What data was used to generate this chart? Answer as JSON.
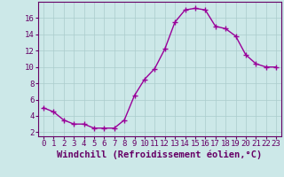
{
  "x": [
    0,
    1,
    2,
    3,
    4,
    5,
    6,
    7,
    8,
    9,
    10,
    11,
    12,
    13,
    14,
    15,
    16,
    17,
    18,
    19,
    20,
    21,
    22,
    23
  ],
  "y": [
    5,
    4.5,
    3.5,
    3,
    3,
    2.5,
    2.5,
    2.5,
    3.5,
    6.5,
    8.5,
    9.8,
    12.2,
    15.5,
    17,
    17.2,
    17,
    15,
    14.7,
    13.8,
    11.5,
    10.4,
    10,
    10
  ],
  "line_color": "#990099",
  "marker_color": "#990099",
  "bg_color": "#cce8e8",
  "grid_color": "#aacccc",
  "xlabel": "Windchill (Refroidissement éolien,°C)",
  "xlim": [
    -0.5,
    23.5
  ],
  "ylim": [
    1.5,
    18.0
  ],
  "yticks": [
    2,
    4,
    6,
    8,
    10,
    12,
    14,
    16
  ],
  "xticks": [
    0,
    1,
    2,
    3,
    4,
    5,
    6,
    7,
    8,
    9,
    10,
    11,
    12,
    13,
    14,
    15,
    16,
    17,
    18,
    19,
    20,
    21,
    22,
    23
  ],
  "tick_label_fontsize": 6.5,
  "xlabel_fontsize": 7.5,
  "spine_color": "#660066",
  "tick_color": "#660066",
  "label_color": "#660066"
}
